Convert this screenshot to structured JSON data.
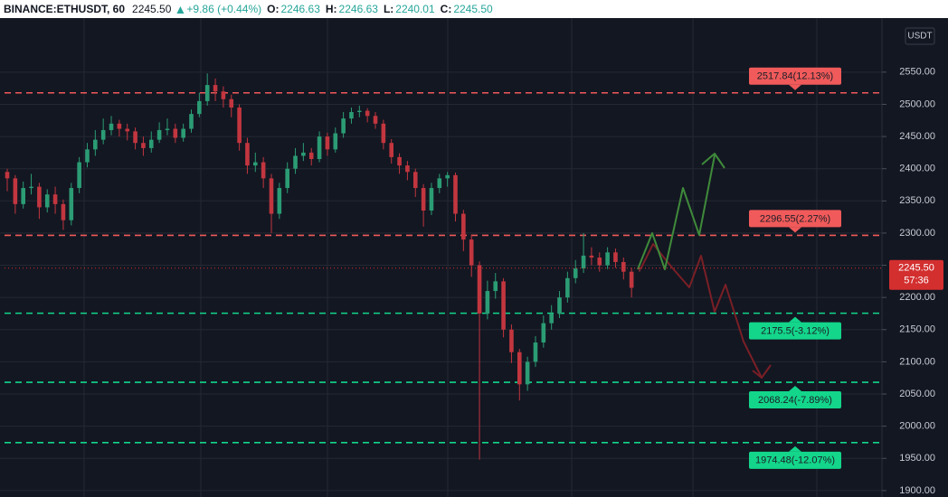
{
  "chart_data": {
    "type": "candlestick",
    "header": {
      "symbol": "BINANCE:ETHUSDT, 60",
      "last": "2245.50",
      "change": "+9.86 (+0.44%)",
      "ohlc": [
        {
          "label": "O:",
          "value": "2246.63"
        },
        {
          "label": "H:",
          "value": "2246.63"
        },
        {
          "label": "L:",
          "value": "2240.01"
        },
        {
          "label": "C:",
          "value": "2245.50"
        }
      ]
    },
    "axis_unit": "USDT",
    "ylim": [
      1890,
      2634
    ],
    "yticks": [
      {
        "value": 1900,
        "label": "1900.00"
      },
      {
        "value": 1950,
        "label": "1950.00"
      },
      {
        "value": 2000,
        "label": "2000.00"
      },
      {
        "value": 2050,
        "label": "2050.00"
      },
      {
        "value": 2100,
        "label": "2100.00"
      },
      {
        "value": 2150,
        "label": "2150.00"
      },
      {
        "value": 2200,
        "label": "2200.00"
      },
      {
        "value": 2250,
        "label": "2250.00"
      },
      {
        "value": 2300,
        "label": "2300.00"
      },
      {
        "value": 2350,
        "label": "2350.00"
      },
      {
        "value": 2400,
        "label": "2400.00"
      },
      {
        "value": 2450,
        "label": "2450.00"
      },
      {
        "value": 2500,
        "label": "2500.00"
      },
      {
        "value": 2550,
        "label": "2550.00"
      }
    ],
    "grid": true,
    "up_color": "#2b9c74",
    "down_color": "#c2363f",
    "open": [
      2395,
      2385,
      2345,
      2370,
      2372,
      2340,
      2360,
      2345,
      2320,
      2370,
      2410,
      2430,
      2445,
      2460,
      2470,
      2462,
      2458,
      2440,
      2432,
      2445,
      2460,
      2462,
      2448,
      2462,
      2485,
      2505,
      2530,
      2520,
      2508,
      2495,
      2440,
      2405,
      2410,
      2385,
      2330,
      2370,
      2400,
      2420,
      2425,
      2415,
      2450,
      2430,
      2455,
      2478,
      2488,
      2490,
      2482,
      2470,
      2440,
      2418,
      2405,
      2395,
      2370,
      2335,
      2370,
      2385,
      2390,
      2330,
      2290,
      2250,
      2175,
      2210,
      2225,
      2150,
      2115,
      2065,
      2100,
      2130,
      2160,
      2175,
      2200,
      2230,
      2245,
      2265,
      2262,
      2250,
      2270,
      2255,
      2240,
      2246.63
    ],
    "high": [
      2400,
      2390,
      2380,
      2392,
      2378,
      2368,
      2372,
      2352,
      2378,
      2418,
      2440,
      2460,
      2478,
      2482,
      2476,
      2470,
      2464,
      2450,
      2458,
      2472,
      2478,
      2470,
      2470,
      2492,
      2518,
      2548,
      2540,
      2528,
      2515,
      2500,
      2448,
      2425,
      2418,
      2392,
      2378,
      2410,
      2432,
      2440,
      2432,
      2458,
      2456,
      2464,
      2488,
      2495,
      2498,
      2494,
      2488,
      2476,
      2446,
      2424,
      2412,
      2400,
      2376,
      2378,
      2392,
      2395,
      2394,
      2336,
      2298,
      2256,
      2226,
      2238,
      2230,
      2158,
      2120,
      2108,
      2140,
      2172,
      2188,
      2210,
      2240,
      2258,
      2300,
      2278,
      2270,
      2278,
      2276,
      2262,
      2246,
      2246.63
    ],
    "low": [
      2365,
      2330,
      2338,
      2360,
      2322,
      2332,
      2330,
      2305,
      2312,
      2362,
      2402,
      2420,
      2438,
      2452,
      2450,
      2444,
      2430,
      2420,
      2425,
      2440,
      2452,
      2440,
      2442,
      2456,
      2480,
      2498,
      2505,
      2495,
      2480,
      2428,
      2392,
      2395,
      2370,
      2300,
      2322,
      2362,
      2392,
      2412,
      2405,
      2410,
      2420,
      2425,
      2448,
      2470,
      2480,
      2472,
      2462,
      2430,
      2408,
      2392,
      2382,
      2356,
      2310,
      2328,
      2362,
      2372,
      2318,
      2272,
      2232,
      1948,
      2166,
      2198,
      2138,
      2098,
      2040,
      2055,
      2092,
      2122,
      2150,
      2168,
      2192,
      2222,
      2238,
      2250,
      2240,
      2244,
      2246,
      2228,
      2200,
      2240.01
    ],
    "close": [
      2385,
      2345,
      2370,
      2372,
      2340,
      2360,
      2345,
      2320,
      2370,
      2410,
      2430,
      2445,
      2460,
      2470,
      2462,
      2458,
      2440,
      2432,
      2445,
      2460,
      2462,
      2448,
      2462,
      2485,
      2505,
      2530,
      2520,
      2508,
      2495,
      2440,
      2405,
      2410,
      2385,
      2330,
      2370,
      2400,
      2420,
      2425,
      2415,
      2450,
      2430,
      2455,
      2478,
      2488,
      2490,
      2482,
      2470,
      2440,
      2418,
      2405,
      2395,
      2370,
      2335,
      2370,
      2385,
      2390,
      2330,
      2290,
      2250,
      2175,
      2210,
      2225,
      2150,
      2115,
      2065,
      2100,
      2130,
      2160,
      2175,
      2200,
      2230,
      2245,
      2265,
      2262,
      2250,
      2270,
      2255,
      2240,
      2215,
      2245.5
    ],
    "price_tag": {
      "value": 2245.5,
      "label": "2245.50",
      "countdown": "57:36",
      "color": "#d32f2f"
    },
    "levels": [
      {
        "value": 2517.84,
        "label": "2517.84(12.13%)",
        "color": "#f05a5a"
      },
      {
        "value": 2296.55,
        "label": "2296.55(2.27%)",
        "color": "#f05a5a"
      },
      {
        "value": 2175.5,
        "label": "2175.5(-3.12%)",
        "color": "#13d68b"
      },
      {
        "value": 2068.24,
        "label": "2068.24(-7.89%)",
        "color": "#13d68b"
      },
      {
        "value": 1974.48,
        "label": "1974.48(-12.07%)",
        "color": "#13d68b"
      }
    ]
  }
}
